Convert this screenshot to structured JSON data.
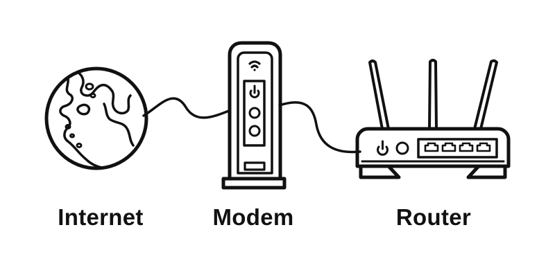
{
  "labels": {
    "internet": "Internet",
    "modem": "Modem",
    "router": "Router"
  },
  "colors": {
    "stroke": "#111111",
    "background": "#ffffff"
  },
  "icons": {
    "internet": "globe-icon",
    "modem": "modem-icon",
    "router": "router-icon"
  }
}
